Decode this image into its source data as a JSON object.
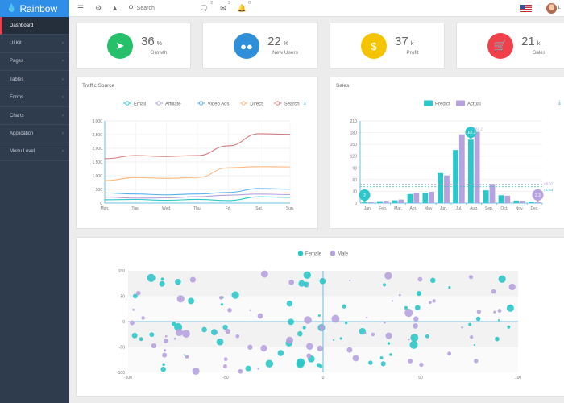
{
  "app": {
    "brand": "Rainbow"
  },
  "header": {
    "search_placeholder": "Search",
    "messages_count": "2",
    "mail_count": "3",
    "alerts_count": "0",
    "user_initial": "L"
  },
  "sidebar": {
    "items": [
      {
        "label": "Dashboard",
        "active": true
      },
      {
        "label": "UI Kit"
      },
      {
        "label": "Pages"
      },
      {
        "label": "Tables"
      },
      {
        "label": "Forms"
      },
      {
        "label": "Charts"
      },
      {
        "label": "Application"
      },
      {
        "label": "Menu Level"
      }
    ]
  },
  "stats": [
    {
      "value": "36",
      "unit": "%",
      "label": "Growth",
      "color": "#27c06a",
      "icon": "rocket-icon"
    },
    {
      "value": "22",
      "unit": "%",
      "label": "New Users",
      "color": "#2f8fd8",
      "icon": "users-icon"
    },
    {
      "value": "37",
      "unit": "k",
      "label": "Profit",
      "color": "#f5c400",
      "icon": "dollar-icon"
    },
    {
      "value": "21",
      "unit": "k",
      "label": "Sales",
      "color": "#f0414a",
      "icon": "cart-icon"
    }
  ],
  "panels": {
    "traffic_title": "Traffic Source",
    "sales_title": "Sales"
  },
  "chart_data": [
    {
      "type": "line",
      "title": "Traffic Source",
      "categories": [
        "Mon.",
        "Tue.",
        "Wed.",
        "Thu.",
        "Fri.",
        "Sat.",
        "Sun."
      ],
      "ylim": [
        0,
        3000
      ],
      "yticks": [
        "0",
        "500",
        "1,000",
        "1,500",
        "2,000",
        "2,500",
        "3,000"
      ],
      "legend_position": "top-center",
      "series": [
        {
          "name": "Email",
          "color": "#2ec7c9",
          "values": [
            120,
            132,
            101,
            134,
            90,
            230,
            210
          ]
        },
        {
          "name": "Affiliate",
          "color": "#b6a2de",
          "values": [
            220,
            182,
            191,
            234,
            290,
            330,
            310
          ]
        },
        {
          "name": "Video Ads",
          "color": "#5ab1ef",
          "values": [
            370,
            332,
            301,
            334,
            390,
            530,
            510
          ]
        },
        {
          "name": "Direct",
          "color": "#ffb980",
          "values": [
            820,
            932,
            901,
            934,
            1290,
            1330,
            1320
          ]
        },
        {
          "name": "Search",
          "color": "#d87a80",
          "values": [
            1620,
            1732,
            1701,
            1734,
            2090,
            2530,
            2510
          ]
        }
      ]
    },
    {
      "type": "bar",
      "title": "Sales",
      "categories": [
        "Jan.",
        "Feb.",
        "Mar.",
        "Apr.",
        "May",
        "Jun.",
        "Jul.",
        "Aug.",
        "Sep.",
        "Oct.",
        "Nov.",
        "Dec."
      ],
      "ylim": [
        0,
        210
      ],
      "yticks": [
        "0",
        "30",
        "60",
        "90",
        "120",
        "150",
        "180",
        "210"
      ],
      "legend_position": "top-center",
      "series": [
        {
          "name": "Predict",
          "color": "#2ec7c9",
          "values": [
            2,
            4.9,
            7,
            23.2,
            25.6,
            76.7,
            135.6,
            162.2,
            32.6,
            20,
            6.4,
            3.3
          ]
        },
        {
          "name": "Actual",
          "color": "#b6a2de",
          "values": [
            2.6,
            5.9,
            9,
            26.4,
            28.7,
            70.7,
            175.6,
            182.2,
            48.7,
            18.8,
            6,
            2.3
          ]
        }
      ],
      "markers": {
        "max_label": "162.2",
        "max2_label": "182.2",
        "min_label": "2",
        "min2_label": "2.3"
      },
      "mean_labels": {
        "predict": "41.63",
        "actual": "48.07"
      }
    },
    {
      "type": "scatter",
      "legend_position": "top-center",
      "xlim": [
        -100,
        100
      ],
      "ylim": [
        -100,
        100
      ],
      "xticks": [
        "-100",
        "-50",
        "0",
        "50",
        "100"
      ],
      "yticks": [
        "100",
        "50",
        "0",
        "-50",
        "-100"
      ],
      "series": [
        {
          "name": "Female",
          "color": "#2ec7c9"
        },
        {
          "name": "Male",
          "color": "#b6a2de"
        }
      ]
    }
  ]
}
